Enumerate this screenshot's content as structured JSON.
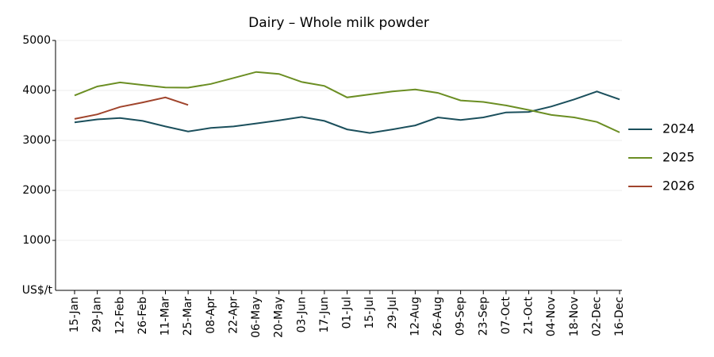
{
  "chart_data": {
    "type": "line",
    "title": "Dairy – Whole milk powder",
    "y_label": "US$/t",
    "categories": [
      "15-Jan",
      "29-Jan",
      "12-Feb",
      "26-Feb",
      "11-Mar",
      "25-Mar",
      "08-Apr",
      "22-Apr",
      "06-May",
      "20-May",
      "03-Jun",
      "17-Jun",
      "01-Jul",
      "15-Jul",
      "29-Jul",
      "12-Aug",
      "26-Aug",
      "09-Sep",
      "23-Sep",
      "07-Oct",
      "21-Oct",
      "04-Nov",
      "18-Nov",
      "02-Dec",
      "16-Dec"
    ],
    "series": [
      {
        "name": "2024",
        "color": "#1b4f5c",
        "values": [
          3360,
          3420,
          3450,
          3390,
          3280,
          3180,
          3250,
          3280,
          3340,
          3400,
          3470,
          3390,
          3220,
          3150,
          3220,
          3300,
          3460,
          3410,
          3460,
          3560,
          3570,
          3680,
          3820,
          3980,
          3820
        ]
      },
      {
        "name": "2025",
        "color": "#6b8e23",
        "values": [
          3900,
          4080,
          4160,
          4110,
          4060,
          4055,
          4130,
          4250,
          4370,
          4330,
          4170,
          4090,
          3860,
          3920,
          3980,
          4020,
          3950,
          3800,
          3770,
          3700,
          3610,
          3510,
          3460,
          3370,
          3160
        ]
      },
      {
        "name": "2026",
        "color": "#a0442c",
        "values": [
          3430,
          3520,
          3670,
          3760,
          3860,
          3710,
          null,
          null,
          null,
          null,
          null,
          null,
          null,
          null,
          null,
          null,
          null,
          null,
          null,
          null,
          null,
          null,
          null,
          null,
          null
        ]
      }
    ],
    "ylim": [
      0,
      5000
    ],
    "yticks": [
      1000,
      2000,
      3000,
      4000,
      5000
    ],
    "grid": true,
    "legend": "right"
  }
}
